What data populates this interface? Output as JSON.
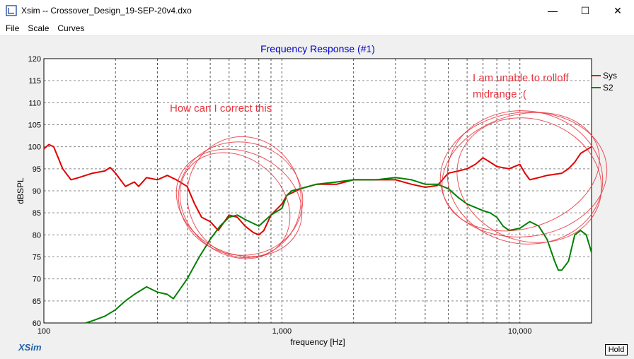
{
  "window": {
    "title": "Xsim -- Crossover_Design_19-SEP-20v4.dxo",
    "controls": {
      "minimize": "—",
      "maximize": "☐",
      "close": "✕"
    }
  },
  "menu": {
    "items": [
      "File",
      "Scale",
      "Curves"
    ]
  },
  "brand": "XSim",
  "hold_label": "Hold",
  "annotations": {
    "left_note": "How can I correct this",
    "right_note_line1": "I am unable to rolloff",
    "right_note_line2": "midrange :(",
    "color": "#e8343d"
  },
  "chart_data": {
    "type": "line",
    "title": "Frequency Response (#1)",
    "xlabel": "frequency [Hz]",
    "ylabel": "dBSPL",
    "xscale": "log",
    "xlim": [
      100,
      20000
    ],
    "ylim": [
      60,
      120
    ],
    "x_tick_labels": [
      "100",
      "1,000",
      "10,000"
    ],
    "y_ticks": [
      60,
      65,
      70,
      75,
      80,
      85,
      90,
      95,
      100,
      105,
      110,
      115,
      120
    ],
    "grid": true,
    "legend": "top-right",
    "series": [
      {
        "name": "Sys",
        "color": "#e00000",
        "points": [
          [
            100,
            99.5
          ],
          [
            105,
            100.5
          ],
          [
            110,
            100
          ],
          [
            120,
            95
          ],
          [
            130,
            92.5
          ],
          [
            140,
            93
          ],
          [
            160,
            94
          ],
          [
            180,
            94.5
          ],
          [
            190,
            95.3
          ],
          [
            200,
            94
          ],
          [
            220,
            91
          ],
          [
            240,
            92
          ],
          [
            250,
            91
          ],
          [
            270,
            93
          ],
          [
            300,
            92.5
          ],
          [
            330,
            93.5
          ],
          [
            360,
            92.5
          ],
          [
            400,
            91
          ],
          [
            430,
            87
          ],
          [
            460,
            84
          ],
          [
            500,
            83
          ],
          [
            540,
            81
          ],
          [
            600,
            84.5
          ],
          [
            650,
            84
          ],
          [
            700,
            82
          ],
          [
            760,
            80.5
          ],
          [
            800,
            80
          ],
          [
            840,
            81
          ],
          [
            900,
            84.5
          ],
          [
            1000,
            87
          ],
          [
            1050,
            89
          ],
          [
            1100,
            89.5
          ],
          [
            1200,
            90.5
          ],
          [
            1400,
            91.5
          ],
          [
            1700,
            91.5
          ],
          [
            2000,
            92.5
          ],
          [
            2500,
            92.5
          ],
          [
            3000,
            92.5
          ],
          [
            3500,
            91.5
          ],
          [
            4000,
            90.8
          ],
          [
            4500,
            91.2
          ],
          [
            5000,
            94
          ],
          [
            5500,
            94.5
          ],
          [
            6000,
            95
          ],
          [
            6500,
            96
          ],
          [
            7000,
            97.5
          ],
          [
            7500,
            96.5
          ],
          [
            8000,
            95.5
          ],
          [
            9000,
            95
          ],
          [
            10000,
            96
          ],
          [
            10500,
            94
          ],
          [
            11000,
            92.5
          ],
          [
            12000,
            93
          ],
          [
            13000,
            93.5
          ],
          [
            15000,
            94
          ],
          [
            16000,
            95
          ],
          [
            17000,
            96.5
          ],
          [
            18000,
            98.5
          ],
          [
            20000,
            100
          ]
        ]
      },
      {
        "name": "S2",
        "color": "#008000",
        "points": [
          [
            150,
            60
          ],
          [
            160,
            60.5
          ],
          [
            180,
            61.5
          ],
          [
            200,
            63
          ],
          [
            220,
            65
          ],
          [
            240,
            66.5
          ],
          [
            270,
            68.2
          ],
          [
            300,
            67
          ],
          [
            330,
            66.5
          ],
          [
            350,
            65.5
          ],
          [
            400,
            70
          ],
          [
            450,
            75
          ],
          [
            500,
            79
          ],
          [
            550,
            82
          ],
          [
            600,
            84
          ],
          [
            650,
            84.5
          ],
          [
            700,
            83.5
          ],
          [
            800,
            82
          ],
          [
            900,
            84.5
          ],
          [
            1000,
            86
          ],
          [
            1050,
            89
          ],
          [
            1100,
            90
          ],
          [
            1200,
            90.5
          ],
          [
            1400,
            91.5
          ],
          [
            1700,
            92
          ],
          [
            2000,
            92.5
          ],
          [
            2500,
            92.5
          ],
          [
            3000,
            93
          ],
          [
            3500,
            92.5
          ],
          [
            4000,
            91.5
          ],
          [
            4500,
            91.5
          ],
          [
            5000,
            90.5
          ],
          [
            5500,
            88.5
          ],
          [
            6000,
            87
          ],
          [
            7000,
            85.5
          ],
          [
            7500,
            85
          ],
          [
            8000,
            84
          ],
          [
            8500,
            82
          ],
          [
            9000,
            81
          ],
          [
            10000,
            81.5
          ],
          [
            11000,
            83
          ],
          [
            12000,
            82
          ],
          [
            13000,
            79
          ],
          [
            14000,
            74
          ],
          [
            14500,
            72
          ],
          [
            15000,
            72
          ],
          [
            16000,
            74
          ],
          [
            17000,
            80
          ],
          [
            18000,
            81
          ],
          [
            19000,
            80
          ],
          [
            20000,
            76
          ]
        ]
      }
    ]
  }
}
